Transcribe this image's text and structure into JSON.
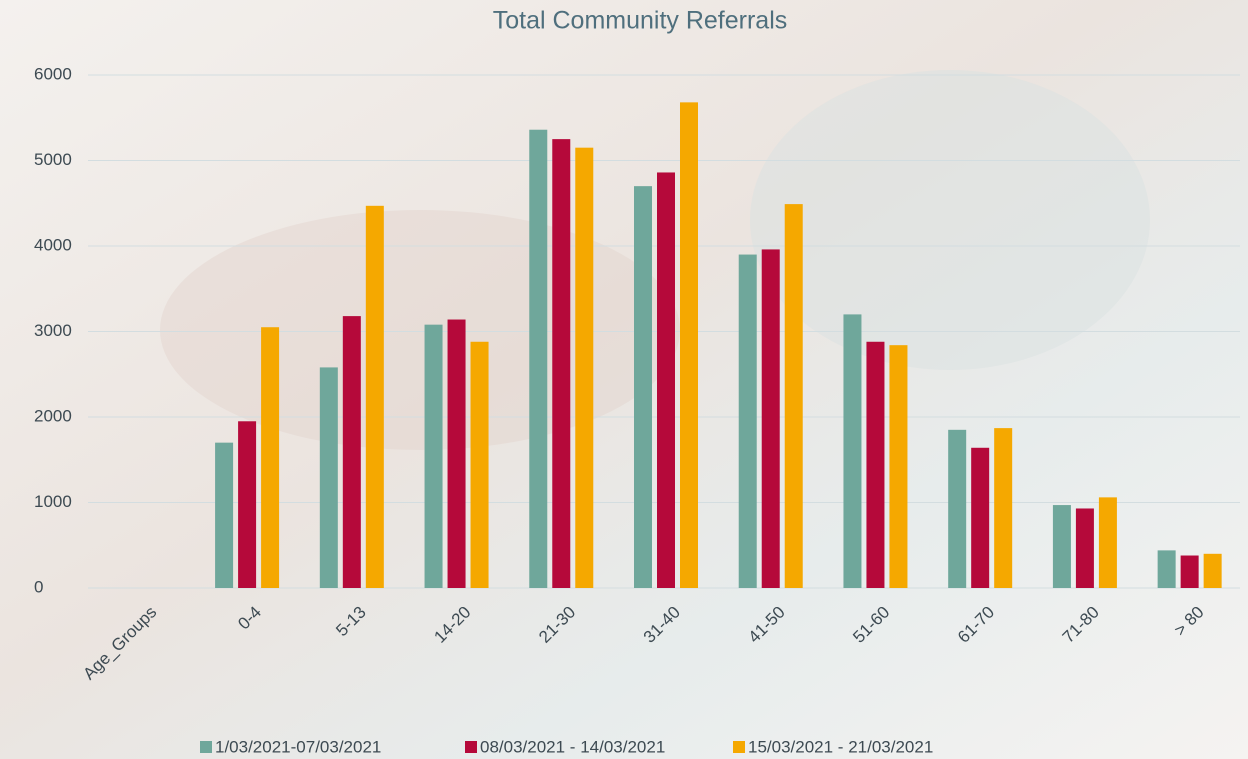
{
  "chart_data": {
    "type": "bar",
    "title": "Total Community Referrals",
    "categories": [
      "Age_Groups",
      "0-4",
      "5-13",
      "14-20",
      "21-30",
      "31-40",
      "41-50",
      "51-60",
      "61-70",
      "71-80",
      "> 80"
    ],
    "series": [
      {
        "name": "1/03/2021-07/03/2021",
        "color": "#6fa79b",
        "values": [
          null,
          1700,
          2580,
          3080,
          5360,
          4700,
          3900,
          3200,
          1850,
          970,
          440
        ]
      },
      {
        "name": "08/03/2021 - 14/03/2021",
        "color": "#b5093a",
        "values": [
          null,
          1950,
          3180,
          3140,
          5250,
          4860,
          3960,
          2880,
          1640,
          930,
          380
        ]
      },
      {
        "name": "15/03/2021 - 21/03/2021",
        "color": "#f5a800",
        "values": [
          null,
          3050,
          4470,
          2880,
          5150,
          5680,
          4490,
          2840,
          1870,
          1060,
          400
        ]
      }
    ],
    "ylim": [
      0,
      6000
    ],
    "yticks": [
      0,
      1000,
      2000,
      3000,
      4000,
      5000,
      6000
    ],
    "grid": true,
    "legend": "bottom"
  }
}
